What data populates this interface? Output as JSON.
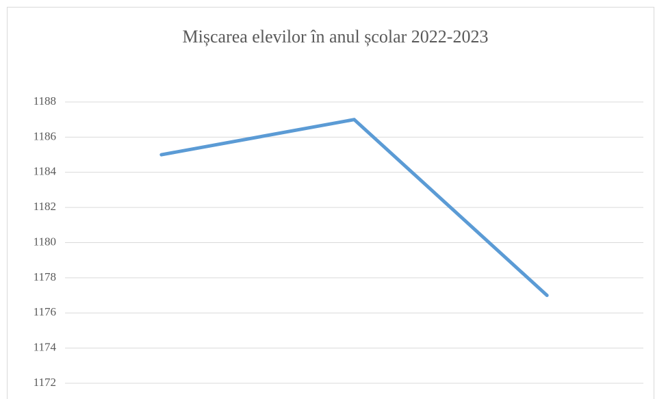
{
  "chart_data": {
    "type": "line",
    "title": "Mișcarea elevilor în anul școlar 2022-2023",
    "categories": [
      null,
      null,
      null
    ],
    "series": [
      {
        "color": "#5b9bd5",
        "values": [
          1185,
          1187,
          1177
        ]
      }
    ],
    "ylim": [
      1172,
      1188
    ],
    "yticks": [
      1172,
      1174,
      1176,
      1178,
      1180,
      1182,
      1184,
      1186,
      1188
    ],
    "grid": true
  }
}
